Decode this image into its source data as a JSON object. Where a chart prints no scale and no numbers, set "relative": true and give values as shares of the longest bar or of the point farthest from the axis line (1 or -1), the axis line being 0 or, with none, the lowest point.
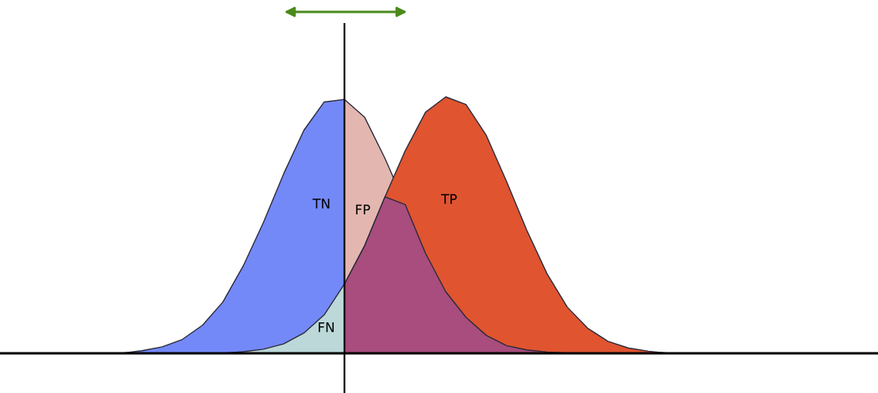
{
  "chart_data": {
    "type": "area",
    "relative": true,
    "categories": [
      null,
      null,
      null,
      null,
      null,
      null,
      null,
      null,
      null,
      null,
      null,
      null,
      null,
      null,
      null,
      null,
      null,
      null,
      null,
      null,
      null,
      null,
      null,
      null,
      null,
      null,
      null,
      null,
      null,
      null,
      null,
      null,
      null,
      null,
      null,
      null,
      null,
      null,
      null,
      null,
      null,
      null,
      null,
      null
    ],
    "series": [
      {
        "name": "TN",
        "color": "#7489f8",
        "values": [
          0,
          0,
          0,
          0,
          0,
          0,
          0,
          0.01,
          0.025,
          0.054,
          0.11,
          0.2,
          0.34,
          0.51,
          0.7,
          0.87,
          0.98,
          0.99,
          null,
          null,
          null,
          null,
          null,
          null,
          null,
          null,
          null,
          null,
          null,
          null,
          null,
          null,
          null,
          null,
          null,
          null,
          null,
          null,
          null,
          null,
          null,
          null,
          null,
          null
        ]
      },
      {
        "name": "FN",
        "color": "#bcd8d9",
        "values": [
          0,
          0,
          0,
          0,
          0,
          0,
          0,
          0,
          0,
          0,
          0,
          0,
          0.006,
          0.016,
          0.037,
          0.079,
          0.15,
          0.27,
          null,
          null,
          null,
          null,
          null,
          null,
          null,
          null,
          null,
          null,
          null,
          null,
          null,
          null,
          null,
          null,
          null,
          null,
          null,
          null,
          null,
          null,
          null,
          null,
          null,
          null
        ]
      },
      {
        "name": "FP",
        "color": "#e3b7b0",
        "values": [
          null,
          null,
          null,
          null,
          null,
          null,
          null,
          null,
          null,
          null,
          null,
          null,
          null,
          null,
          null,
          null,
          null,
          0.99,
          0.92,
          0.76,
          0.58,
          0.39,
          0.24,
          0.14,
          0.07,
          0.03,
          0.013,
          0.005,
          0,
          0,
          0,
          0,
          0,
          0,
          0,
          0,
          0,
          0,
          0,
          0,
          0,
          0,
          0,
          0
        ]
      },
      {
        "name": "TP",
        "color": "#e05430",
        "values": [
          null,
          null,
          null,
          null,
          null,
          null,
          null,
          null,
          null,
          null,
          null,
          null,
          null,
          null,
          null,
          null,
          null,
          0.27,
          0.42,
          0.61,
          0.79,
          0.94,
          1,
          0.97,
          0.85,
          0.67,
          0.48,
          0.31,
          0.18,
          0.098,
          0.047,
          0.021,
          0.008,
          0,
          0,
          0,
          0,
          0,
          0,
          0,
          0,
          0,
          0,
          0
        ]
      },
      {
        "color": "#a84d7d",
        "values": [
          null,
          null,
          null,
          null,
          null,
          null,
          null,
          null,
          null,
          null,
          null,
          null,
          null,
          null,
          null,
          null,
          null,
          0.27,
          0.42,
          0.61,
          0.58,
          0.39,
          0.24,
          0.14,
          0.07,
          0.03,
          0.013,
          0.005,
          0,
          0,
          0,
          0,
          0,
          0,
          0,
          0,
          0,
          0,
          0,
          0,
          0,
          0,
          0,
          0
        ]
      }
    ]
  }
}
